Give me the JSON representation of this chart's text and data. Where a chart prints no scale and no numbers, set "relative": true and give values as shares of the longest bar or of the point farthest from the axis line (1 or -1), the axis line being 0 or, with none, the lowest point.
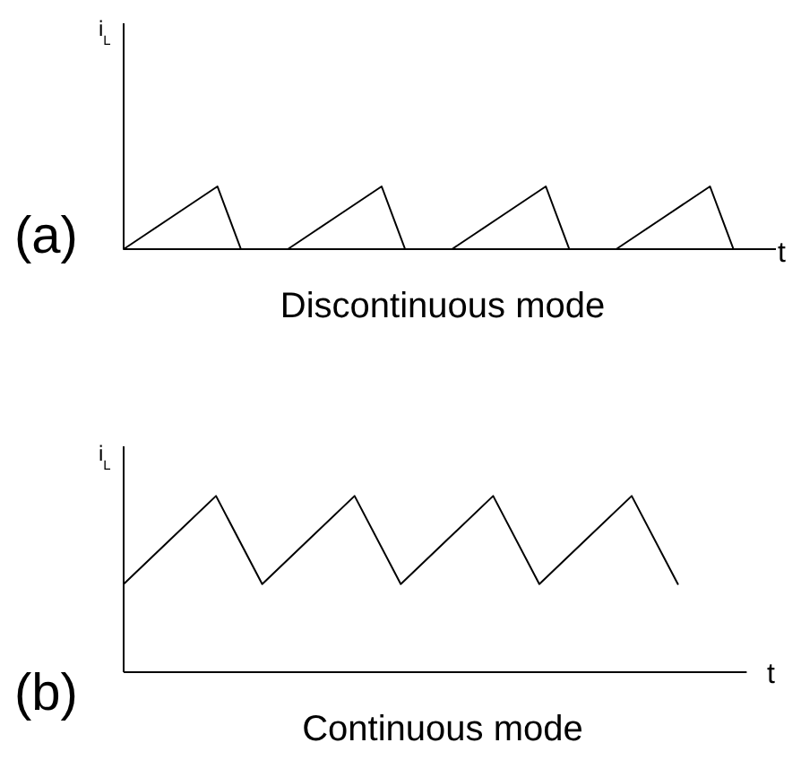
{
  "chart_data": [
    {
      "type": "line",
      "title": "Discontinuous mode",
      "xlabel": "t",
      "ylabel": "i$_{L}$",
      "annotations": [
        "(a)"
      ],
      "relative": true,
      "categories": [
        null,
        null,
        null,
        null,
        null,
        null,
        null,
        null,
        null,
        null,
        null,
        null,
        null,
        null,
        null,
        null,
        null,
        null,
        null,
        null,
        null,
        null,
        null,
        null,
        null,
        null,
        null,
        null
      ],
      "values": [
        0,
        0.25,
        0.5,
        0.75,
        1,
        0,
        0,
        0,
        0.25,
        0.5,
        0.75,
        1,
        0,
        0,
        0,
        0.25,
        0.5,
        0.75,
        1,
        0,
        0,
        0,
        0.25,
        0.5,
        0.75,
        1,
        0,
        0
      ],
      "color": "#000000"
    },
    {
      "type": "line",
      "title": "Continuous mode",
      "xlabel": "t",
      "ylabel": "i$_{L}$",
      "annotations": [
        "(b)"
      ],
      "relative": true,
      "categories": [
        null,
        null,
        null,
        null,
        null,
        null,
        null,
        null,
        null,
        null,
        null,
        null,
        null
      ],
      "values": [
        0.5,
        0.75,
        1,
        0.5,
        0.75,
        1,
        0.5,
        0.75,
        1,
        0.5,
        0.75,
        1,
        0.5
      ],
      "color": "#000000"
    }
  ]
}
